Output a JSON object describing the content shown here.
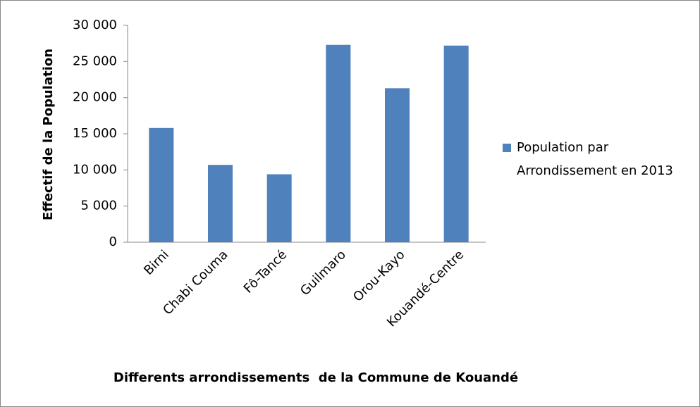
{
  "chart_data": {
    "type": "bar",
    "x_label": "Differents arrondissements  de la Commune de Kouandé",
    "y_label": "Effectif de la Population",
    "categories": [
      "Birni",
      "Chabi Couma",
      "Fô-Tancé",
      "Guilmaro",
      "Orou-Kayo",
      "Kouandé-Centre"
    ],
    "series": [
      {
        "name": "Population par Arrondissement en 2013",
        "color": "#4f81bd",
        "values": [
          15800,
          10700,
          9400,
          27300,
          21300,
          27200
        ]
      }
    ],
    "ylim": [
      0,
      30000
    ],
    "yticks": [
      0,
      {
        "value": 5000,
        "label": "5 000"
      },
      {
        "value": 10000,
        "label": "10 000"
      },
      {
        "value": 15000,
        "label": "15 000"
      },
      {
        "value": 20000,
        "label": "20 000"
      },
      {
        "value": 25000,
        "label": "25 000"
      },
      {
        "value": 30000,
        "label": "30 000"
      }
    ],
    "grid": false,
    "legend": "right"
  }
}
